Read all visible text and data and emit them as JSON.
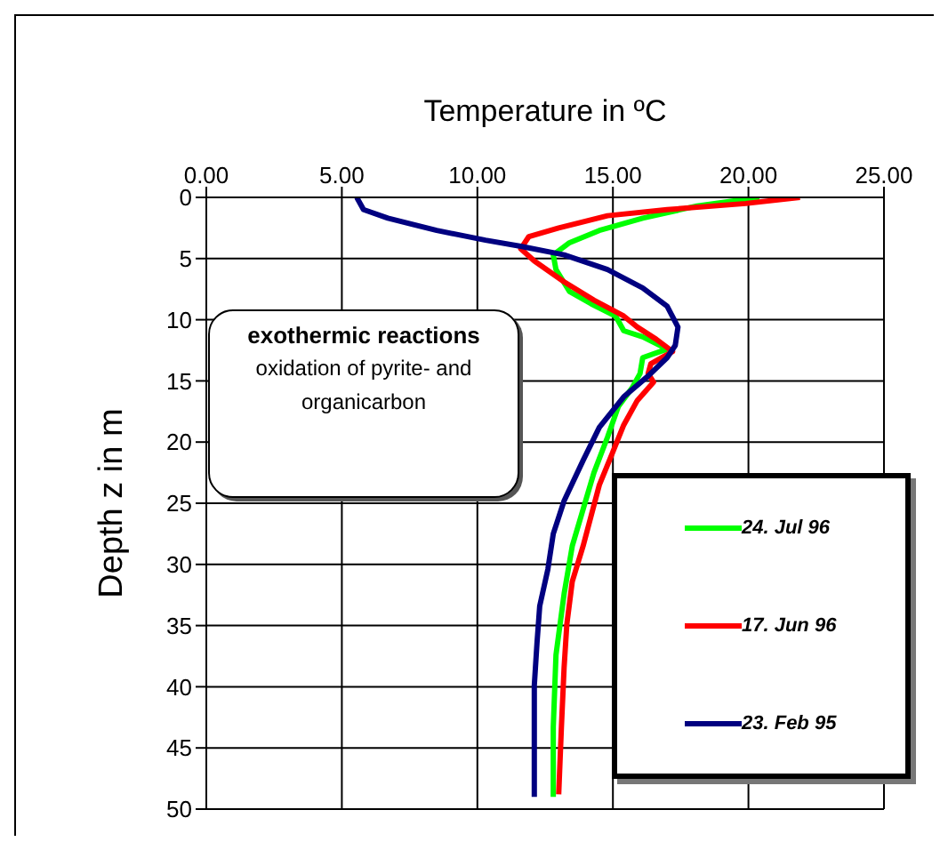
{
  "chart_data": {
    "type": "line",
    "xlabel": "Temperature in ºC",
    "ylabel": "Depth z in m",
    "xlim": [
      0,
      25
    ],
    "xticks": [
      {
        "value": 0,
        "label": "0.00"
      },
      {
        "value": 5,
        "label": "5.00"
      },
      {
        "value": 10,
        "label": "10.00"
      },
      {
        "value": 15,
        "label": "15.00"
      },
      {
        "value": 20,
        "label": "20.00"
      },
      {
        "value": 25,
        "label": "25.00"
      }
    ],
    "ylim": [
      50,
      0
    ],
    "yticks": [
      0,
      5,
      10,
      15,
      20,
      25,
      30,
      35,
      40,
      45,
      50
    ],
    "grid": true,
    "legend": "bottom right",
    "annotations": [
      "exothermic reactions",
      "oxidation of pyrite- and organicarbon"
    ],
    "series": [
      {
        "name": "24. Jul 96",
        "color": "#00ff00",
        "x": [
          20.4,
          18.1,
          16.1,
          14.5,
          13.4,
          12.8,
          12.9,
          13.4,
          14.2,
          15.1,
          15.4,
          16.1,
          17.0,
          16.1,
          16.0,
          15.7,
          15.2,
          14.8,
          14.3,
          13.9,
          13.5,
          13.2,
          12.9,
          12.8,
          12.8
        ],
        "values": [
          0,
          0.7,
          1.7,
          2.7,
          3.7,
          4.7,
          5.9,
          7.7,
          8.7,
          9.7,
          10.9,
          11.4,
          12.4,
          13.1,
          14.4,
          15.6,
          17.1,
          19.6,
          22.5,
          25.5,
          28.5,
          32.4,
          37.4,
          43.3,
          49
        ]
      },
      {
        "name": "17. Jun 96",
        "color": "#ff0000",
        "x": [
          21.9,
          19.9,
          17.0,
          14.8,
          13.0,
          11.9,
          11.6,
          12.1,
          13.2,
          14.3,
          15.4,
          15.9,
          16.6,
          17.2,
          16.4,
          16.3,
          16.5,
          15.9,
          15.4,
          15.0,
          14.5,
          14.2,
          13.9,
          13.5,
          13.3,
          13.2,
          13.1,
          13.0
        ],
        "values": [
          0,
          0.5,
          1.0,
          1.5,
          2.5,
          3.2,
          4.2,
          5.2,
          6.9,
          8.4,
          9.7,
          10.6,
          11.6,
          12.6,
          13.6,
          14.4,
          15.1,
          16.6,
          18.6,
          20.8,
          23.5,
          26,
          28.5,
          31.4,
          34.9,
          38.4,
          43.3,
          48.8
        ]
      },
      {
        "name": "23. Feb 95",
        "color": "#000080",
        "x": [
          5.55,
          5.8,
          6.7,
          8.5,
          10.3,
          11.6,
          13.2,
          14.8,
          16.1,
          17.0,
          17.4,
          17.3,
          17.0,
          16.3,
          15.4,
          14.5,
          13.9,
          13.2,
          12.8,
          12.6,
          12.3,
          12.2,
          12.1,
          12.1,
          12.1
        ],
        "values": [
          0,
          1,
          1.7,
          2.7,
          3.5,
          4,
          4.7,
          5.9,
          7.4,
          8.9,
          10.6,
          12.1,
          13.1,
          14.6,
          16.3,
          18.8,
          21.5,
          24.8,
          27.5,
          30.4,
          33.4,
          36.4,
          39.9,
          45.8,
          49
        ]
      }
    ]
  }
}
